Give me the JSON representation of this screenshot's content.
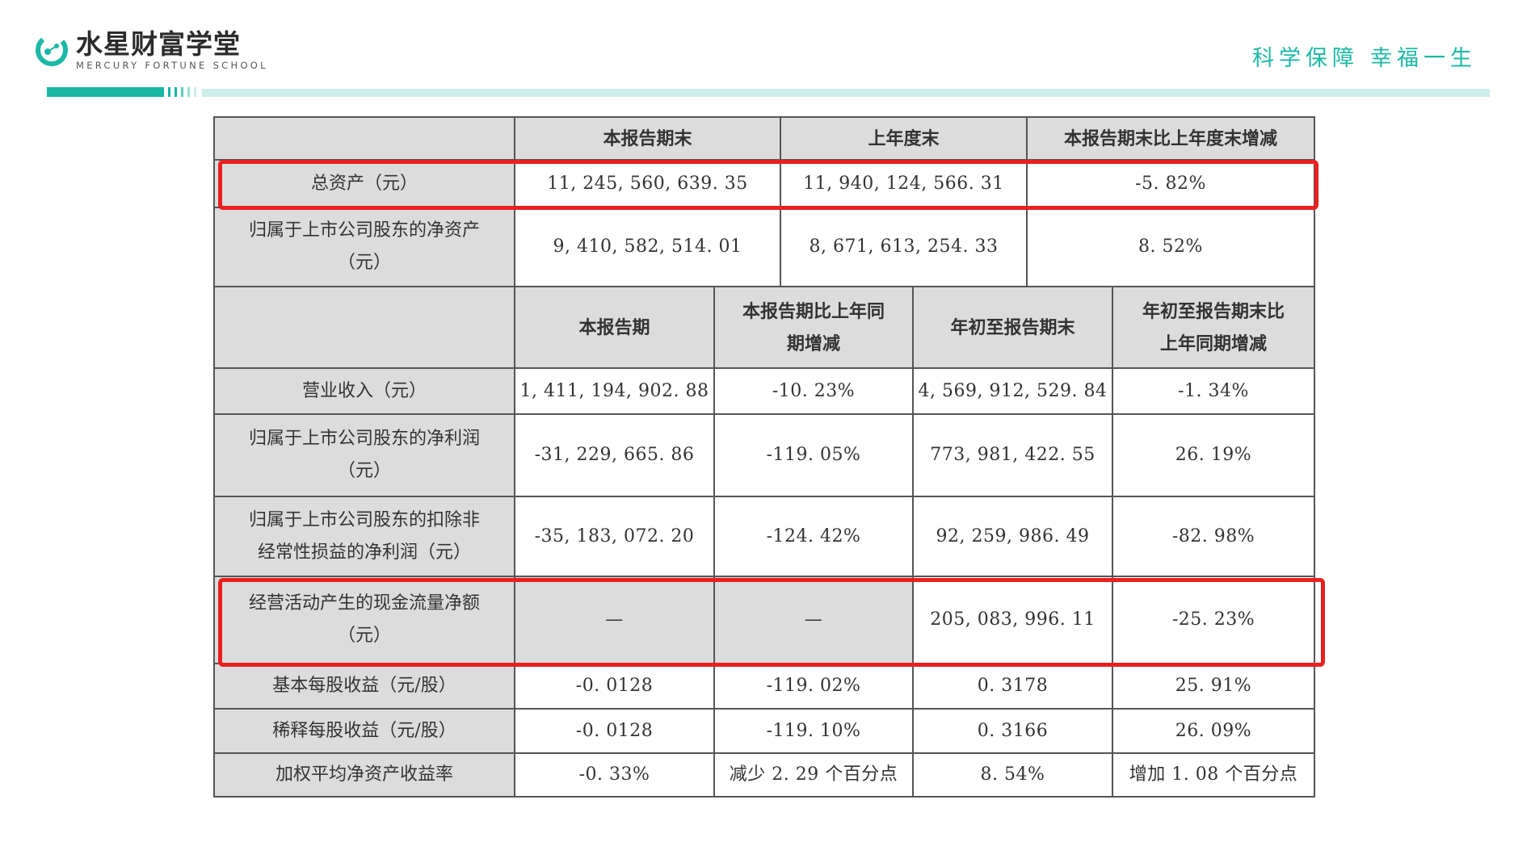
{
  "header": {
    "logo_cn": "水星财富学堂",
    "logo_en": "MERCURY FORTUNE SCHOOL",
    "slogan_1": "科学保障",
    "slogan_2": "幸福一生",
    "accent_color": "#1bb8a6"
  },
  "table1": {
    "headers": [
      "",
      "本报告期末",
      "上年度末",
      "本报告期末比上年度末增减"
    ],
    "rows": [
      {
        "label": "总资产（元）",
        "values": [
          "11, 245, 560, 639. 35",
          "11, 940, 124, 566. 31",
          "-5. 82%"
        ]
      },
      {
        "label_line1": "归属于上市公司股东的净资产",
        "label_line2": "（元）",
        "values": [
          "9, 410, 582, 514. 01",
          "8, 671, 613, 254. 33",
          "8. 52%"
        ]
      }
    ]
  },
  "table2": {
    "headers": [
      "",
      "本报告期",
      "本报告期比上年同期增减",
      "年初至报告期末",
      "年初至报告期末比上年同期增减"
    ],
    "header_lines": {
      "col2_line1": "本报告期比上年同",
      "col2_line2": "期增减",
      "col4_line1": "年初至报告期末比",
      "col4_line2": "上年同期增减"
    },
    "rows": [
      {
        "label_line1": "营业收入（元）",
        "label_line2": "",
        "values": [
          "1, 411, 194, 902. 88",
          "-10. 23%",
          "4, 569, 912, 529. 84",
          "-1. 34%"
        ]
      },
      {
        "label_line1": "归属于上市公司股东的净利润",
        "label_line2": "（元）",
        "values": [
          "-31, 229, 665. 86",
          "-119. 05%",
          "773, 981, 422. 55",
          "26. 19%"
        ]
      },
      {
        "label_line1": "归属于上市公司股东的扣除非",
        "label_line2": "经常性损益的净利润（元）",
        "values": [
          "-35, 183, 072. 20",
          "-124. 42%",
          "92, 259, 986. 49",
          "-82. 98%"
        ]
      },
      {
        "label_line1": "经营活动产生的现金流量净额",
        "label_line2": "（元）",
        "values": [
          "—",
          "—",
          "205, 083, 996. 11",
          "-25. 23%"
        ]
      },
      {
        "label_line1": "基本每股收益（元/股）",
        "label_line2": "",
        "values": [
          "-0. 0128",
          "-119. 02%",
          "0. 3178",
          "25. 91%"
        ]
      },
      {
        "label_line1": "稀释每股收益（元/股）",
        "label_line2": "",
        "values": [
          "-0. 0128",
          "-119. 10%",
          "0. 3166",
          "26. 09%"
        ]
      },
      {
        "label_line1": "加权平均净资产收益率",
        "label_line2": "",
        "values": [
          "-0. 33%",
          "减少 2. 29 个百分点",
          "8. 54%",
          "增加 1. 08 个百分点"
        ]
      }
    ]
  },
  "highlight_color": "#e8201f"
}
